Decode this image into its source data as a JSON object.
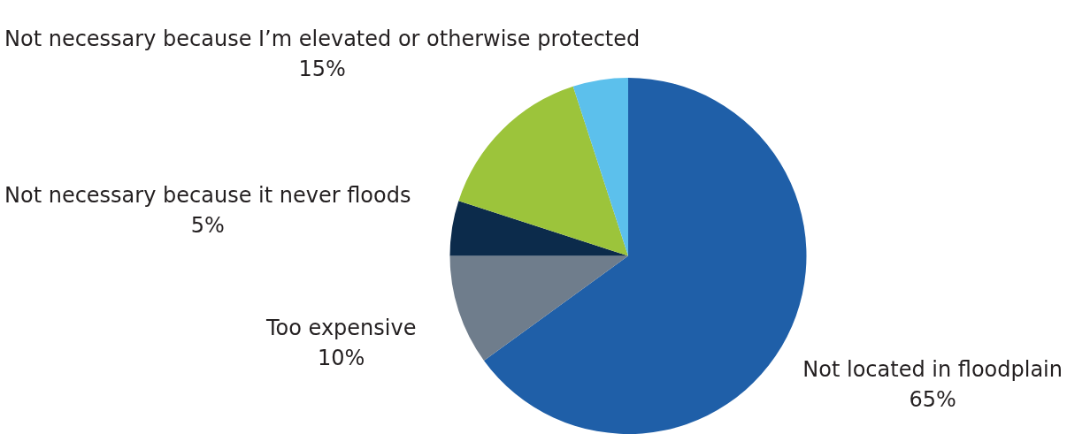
{
  "chart_data": {
    "type": "pie",
    "categories": [
      "Not located in floodplain",
      "Too expensive",
      "Not necessary because it never floods",
      "Not necessary because I’m elevated or otherwise protected",
      null
    ],
    "values": [
      65,
      10,
      5,
      15,
      5
    ],
    "value_labels": [
      "65%",
      "10%",
      "5%",
      "15%",
      null
    ],
    "colors": [
      "#1f5fa8",
      "#6f7d8c",
      "#0c2b4b",
      "#9cc43b",
      "#5cc0ec"
    ],
    "legend": false
  }
}
